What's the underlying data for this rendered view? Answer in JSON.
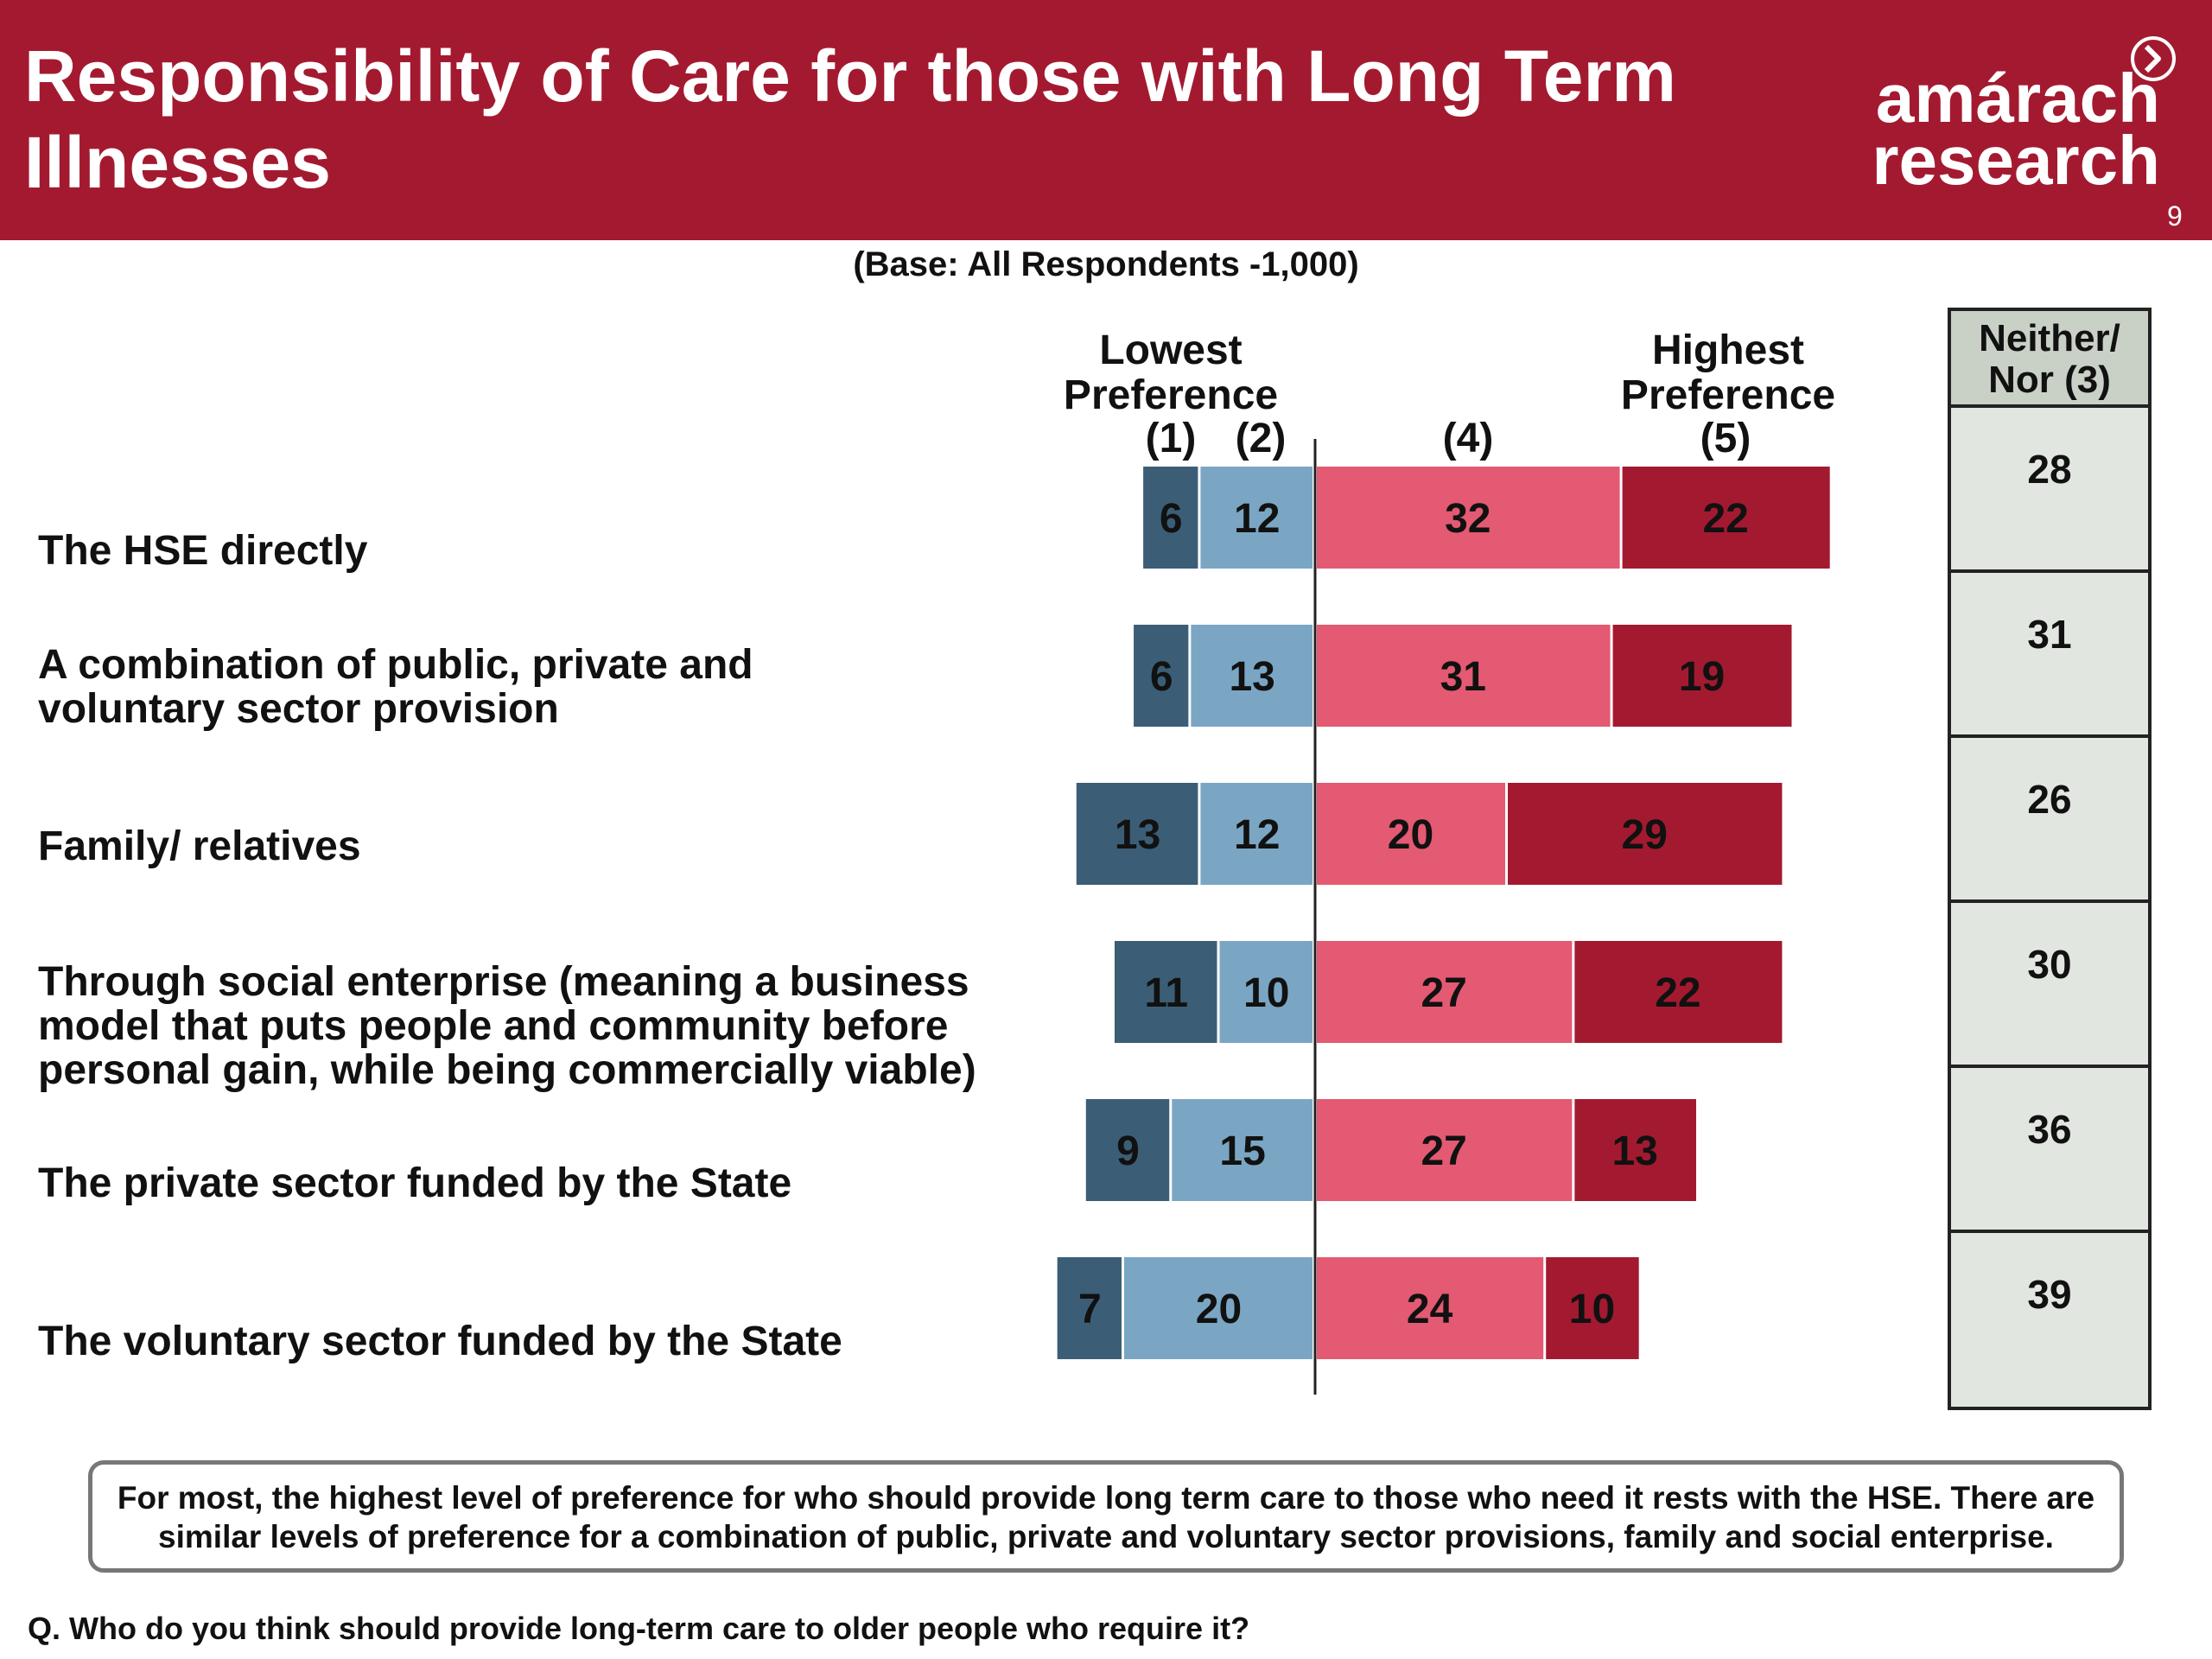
{
  "header": {
    "title": "Responsibility of Care for those with Long Term Illnesses",
    "logo_line1": "amárach",
    "logo_line2": "research",
    "logo_icon": "chevron-circle-icon",
    "page_number": "9",
    "bg_color": "#a31a30"
  },
  "base_note": "(Base:  All Respondents -1,000)",
  "column_headers": {
    "lowest_line1": "Lowest",
    "lowest_line2": "Preference",
    "highest_line1": "Highest",
    "highest_line2": "Preference",
    "c1": "(1)",
    "c2": "(2)",
    "c4": "(4)",
    "c5": "(5)"
  },
  "neither": {
    "header_line1": "Neither/",
    "header_line2": "Nor (3)",
    "values": [
      "28",
      "31",
      "26",
      "30",
      "36",
      "39"
    ]
  },
  "chart_data": {
    "type": "bar",
    "orientation": "horizontal-diverging",
    "categories": [
      "The HSE directly",
      "A combination of public, private and voluntary sector provision",
      "Family/ relatives",
      "Through social enterprise (meaning a business model that puts people and community before personal gain, while being commercially viable)",
      "The private sector funded by the State",
      "The voluntary sector funded by the State"
    ],
    "category_lines": [
      [
        "The HSE directly"
      ],
      [
        "A combination of public, private and",
        "voluntary sector provision"
      ],
      [
        "Family/ relatives"
      ],
      [
        "Through social enterprise (meaning a business",
        "model that puts people and community before",
        "personal gain, while being commercially viable)"
      ],
      [
        "The private sector funded by the State"
      ],
      [
        "The voluntary sector funded by the State"
      ]
    ],
    "series": [
      {
        "name": "(1)",
        "color": "#3b5e76",
        "values": [
          6,
          6,
          13,
          11,
          9,
          7
        ]
      },
      {
        "name": "(2)",
        "color": "#7aa6c4",
        "values": [
          12,
          13,
          12,
          10,
          15,
          20
        ]
      },
      {
        "name": "(4)",
        "color": "#e35a72",
        "values": [
          32,
          31,
          20,
          27,
          27,
          24
        ]
      },
      {
        "name": "(5)",
        "color": "#a31a30",
        "values": [
          22,
          19,
          29,
          22,
          13,
          10
        ]
      }
    ]
  },
  "summary": "For most, the highest level of preference for who should provide long term care to those who need it rests with  the HSE.  There are similar levels of preference for a combination of public, private and voluntary sector provisions, family and social enterprise.",
  "question": "Q. Who do you think should provide long-term care to older people who require it?"
}
